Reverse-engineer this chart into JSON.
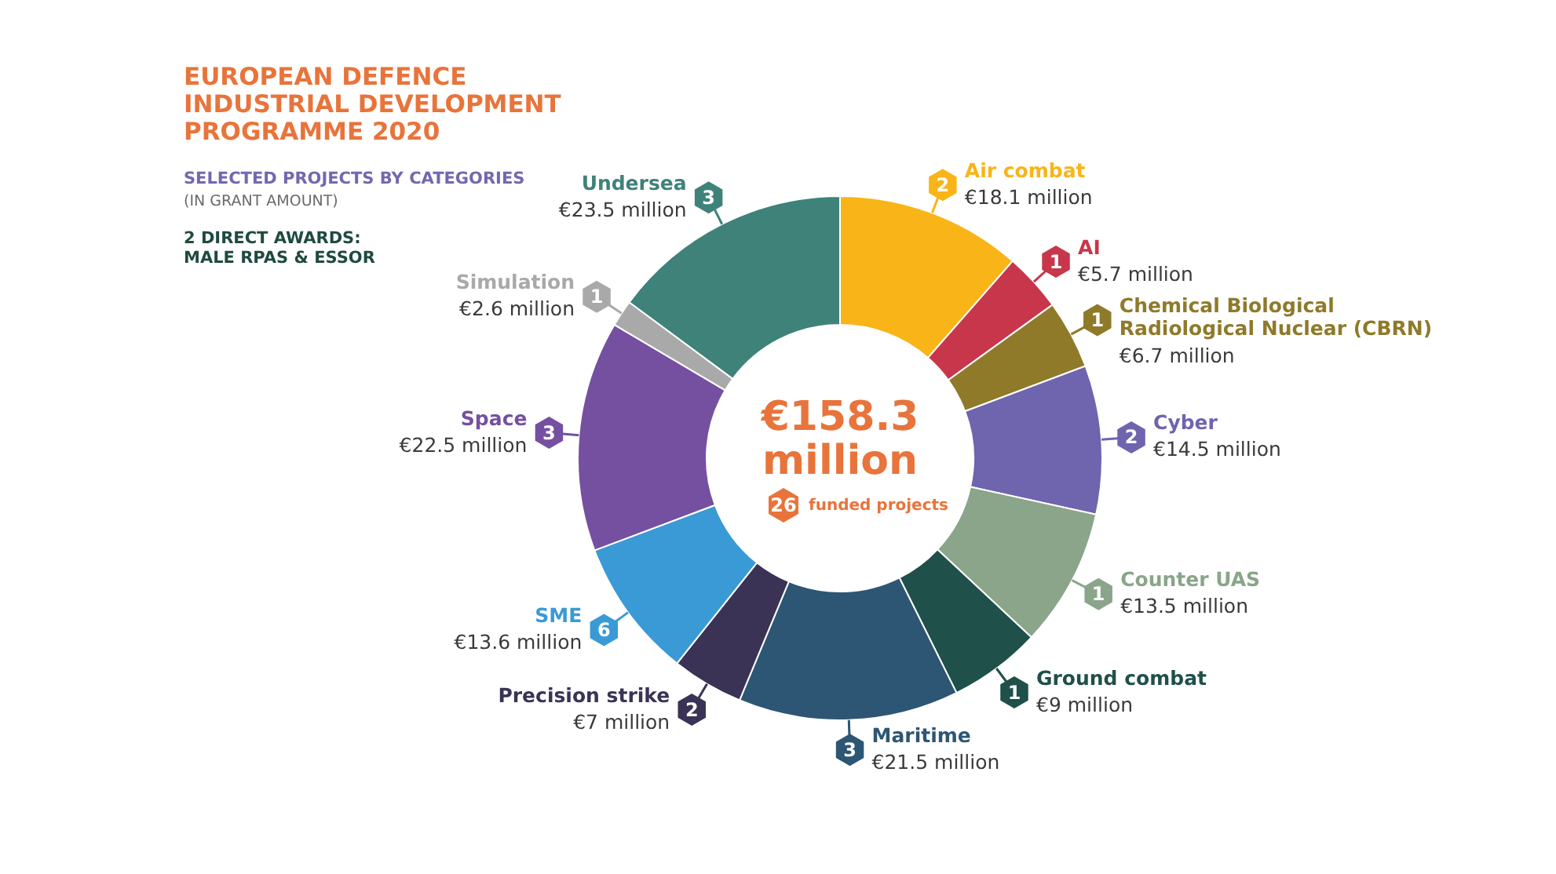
{
  "chart_data": {
    "type": "donut",
    "title": "EUROPEAN DEFENCE INDUSTRIAL DEVELOPMENT PROGRAMME 2020",
    "subtitle": "SELECTED PROJECTS BY CATEGORIES",
    "categories": [
      "Air combat",
      "AI",
      "Chemical Biological Radiological Nuclear (CBRN)",
      "Cyber",
      "Counter UAS",
      "Ground combat",
      "Maritime",
      "Precision strike",
      "SME",
      "Space",
      "Simulation",
      "Undersea"
    ],
    "values": [
      18.1,
      5.7,
      6.7,
      14.5,
      13.5,
      9,
      21.5,
      7,
      13.6,
      22.5,
      2.6,
      23.5
    ],
    "colors": [
      "#f9b418",
      "#c8364b",
      "#8f7a2a",
      "#6f64ae",
      "#8aa58a",
      "#1f5049",
      "#2d5674",
      "#3a3355",
      "#3a9ad6",
      "#7550a0",
      "#a9a9a9",
      "#3f8279"
    ],
    "value_labels": [
      "€18.1 million",
      "€5.7 million",
      "€6.7 million",
      "€14.5 million",
      "€13.5 million",
      "€9 million",
      "€21.5 million",
      "€7 million",
      "€13.6 million",
      "€22.5 million",
      "€2.6 million",
      "€23.5 million"
    ],
    "annotations": [
      "(IN GRANT AMOUNT)",
      "2 DIRECT AWARDS: MALE RPAS & ESSOR",
      "€158.3 million",
      "26",
      "funded projects",
      {
        "text": "2",
        "x": "Air combat"
      },
      {
        "text": "1",
        "x": "AI"
      },
      {
        "text": "1",
        "x": "Chemical Biological Radiological Nuclear (CBRN)"
      },
      {
        "text": "2",
        "x": "Cyber"
      },
      {
        "text": "1",
        "x": "Counter UAS"
      },
      {
        "text": "1",
        "x": "Ground combat"
      },
      {
        "text": "3",
        "x": "Maritime"
      },
      {
        "text": "2",
        "x": "Precision strike"
      },
      {
        "text": "6",
        "x": "SME"
      },
      {
        "text": "3",
        "x": "Space"
      },
      {
        "text": "1",
        "x": "Simulation"
      },
      {
        "text": "3",
        "x": "Undersea"
      }
    ]
  }
}
